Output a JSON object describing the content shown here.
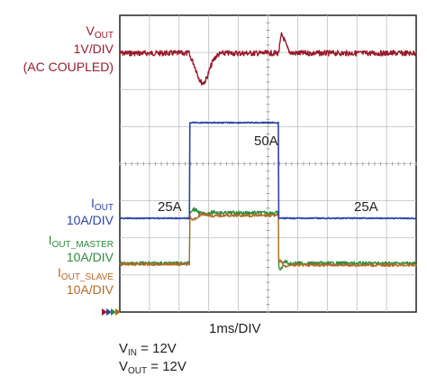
{
  "chart_data": {
    "type": "line",
    "xlabel": "1ms/DIV",
    "x_div_count": 10,
    "y_div_count": 8,
    "labels": {
      "vout": {
        "sym": "V",
        "sub": "OUT",
        "scale": "1V/DIV",
        "note": "(AC COUPLED)"
      },
      "iout": {
        "sym": "I",
        "sub": "OUT",
        "scale": "10A/DIV"
      },
      "iout_master": {
        "sym": "I",
        "sub": "OUT_MASTER",
        "scale": "10A/DIV"
      },
      "iout_slave": {
        "sym": "I",
        "sub": "OUT_SLAVE",
        "scale": "10A/DIV"
      }
    },
    "annotations": {
      "left": "25A",
      "mid": "50A",
      "right": "25A"
    },
    "conditions": [
      {
        "sym": "V",
        "sub": "IN",
        "value": " = 12V"
      },
      {
        "sym": "V",
        "sub": "OUT",
        "value": " = 12V"
      }
    ],
    "load_step": {
      "start_ms": 2.35,
      "end_ms": 5.35
    },
    "series": [
      {
        "name": "VOUT",
        "color": "#9a1a2c"
      },
      {
        "name": "IOUT",
        "color": "#2b44a6"
      },
      {
        "name": "IOUT_MASTER",
        "color": "#2f8a3a"
      },
      {
        "name": "IOUT_SLAVE",
        "color": "#b26a25"
      }
    ]
  }
}
